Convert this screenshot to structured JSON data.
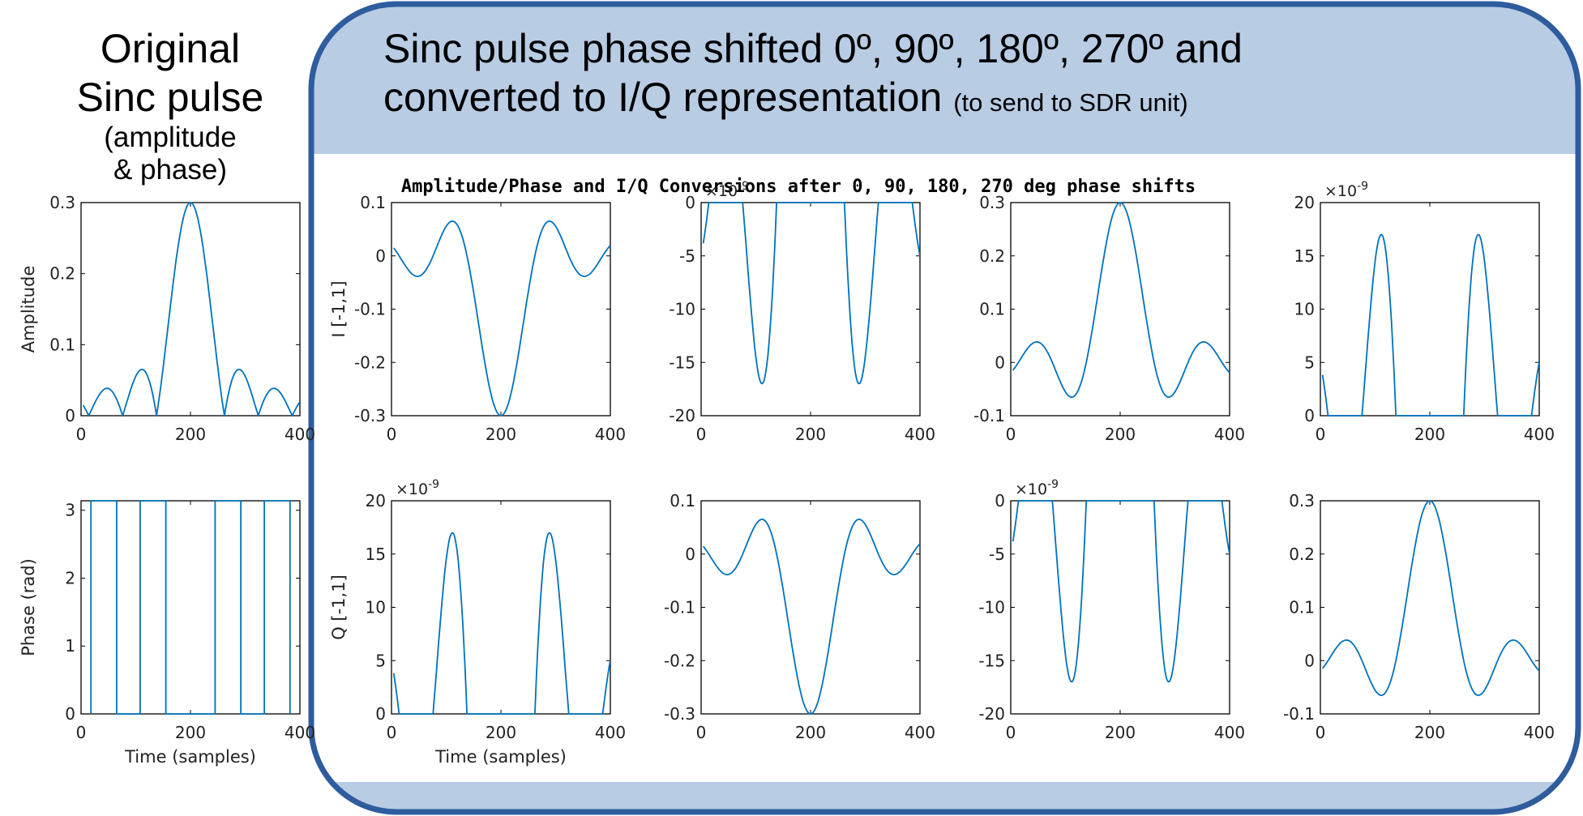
{
  "slide": {
    "left_title": {
      "line1": "Original",
      "line2": "Sinc pulse",
      "line3": "(amplitude",
      "line4": "& phase)"
    },
    "right_title": {
      "line1": "Sinc pulse phase shifted 0º, 90º, 180º, 270º and",
      "line2": "converted to I/Q representation",
      "line2_small": "(to send to SDR unit)"
    },
    "figure_title": "Amplitude/Phase and I/Q Conversions after 0, 90, 180, 270 deg phase shifts",
    "colors": {
      "line": "#0072bd",
      "panel_fill": "#b8cce4",
      "panel_border": "#2e5c9e",
      "axis": "#000000"
    }
  },
  "chart_data": [
    {
      "id": "amp",
      "type": "line",
      "series_shape": "sinc-magnitude",
      "ylabel": "Amplitude",
      "xlabel": "",
      "xlim": [
        0,
        400
      ],
      "ylim": [
        0,
        0.3
      ],
      "xticks": [
        0,
        200,
        400
      ],
      "yticks": [
        0,
        0.1,
        0.2,
        0.3
      ],
      "ytick_labels": [
        "0",
        "0.1",
        "0.2",
        "0.3"
      ],
      "y_exponent": "",
      "peak_x": 200,
      "peak_y": 0.3
    },
    {
      "id": "phase",
      "type": "line",
      "series_shape": "phase-steps",
      "ylabel": "Phase (rad)",
      "xlabel": "Time (samples)",
      "xlim": [
        0,
        400
      ],
      "ylim": [
        0,
        3.14
      ],
      "xticks": [
        0,
        200,
        400
      ],
      "yticks": [
        0,
        1,
        2,
        3
      ],
      "ytick_labels": [
        "0",
        "1",
        "2",
        "3"
      ],
      "y_exponent": "",
      "phase_level": 3.14,
      "phase_transitions": [
        18,
        65,
        108,
        155,
        245,
        292,
        335,
        382
      ]
    },
    {
      "id": "i0",
      "type": "line",
      "series_shape": "sinc-neg",
      "ylabel": "I [-1,1]",
      "xlabel": "",
      "xlim": [
        0,
        400
      ],
      "ylim": [
        -0.3,
        0.1
      ],
      "xticks": [
        0,
        200,
        400
      ],
      "yticks": [
        -0.3,
        -0.2,
        -0.1,
        0,
        0.1
      ],
      "ytick_labels": [
        "-0.3",
        "-0.2",
        "-0.1",
        "0",
        "0.1"
      ],
      "y_exponent": "",
      "peak_x": 200,
      "peak_y": -0.3
    },
    {
      "id": "i90",
      "type": "line",
      "series_shape": "lobes-neg",
      "ylabel": "",
      "xlabel": "",
      "xlim": [
        0,
        400
      ],
      "ylim": [
        -20,
        0
      ],
      "xticks": [
        0,
        200,
        400
      ],
      "yticks": [
        -20,
        -15,
        -10,
        -5,
        0
      ],
      "ytick_labels": [
        "-20",
        "-15",
        "-10",
        "-5",
        "0"
      ],
      "y_exponent": "×10",
      "y_exponent_power": "-9",
      "lobe_peak": -17
    },
    {
      "id": "i180",
      "type": "line",
      "series_shape": "sinc",
      "ylabel": "",
      "xlabel": "",
      "xlim": [
        0,
        400
      ],
      "ylim": [
        -0.1,
        0.3
      ],
      "xticks": [
        0,
        200,
        400
      ],
      "yticks": [
        -0.1,
        0,
        0.1,
        0.2,
        0.3
      ],
      "ytick_labels": [
        "-0.1",
        "0",
        "0.1",
        "0.2",
        "0.3"
      ],
      "y_exponent": "",
      "peak_x": 200,
      "peak_y": 0.3
    },
    {
      "id": "i270",
      "type": "line",
      "series_shape": "lobes-pos",
      "ylabel": "",
      "xlabel": "",
      "xlim": [
        0,
        400
      ],
      "ylim": [
        0,
        20
      ],
      "xticks": [
        0,
        200,
        400
      ],
      "yticks": [
        0,
        5,
        10,
        15,
        20
      ],
      "ytick_labels": [
        "0",
        "5",
        "10",
        "15",
        "20"
      ],
      "y_exponent": "×10",
      "y_exponent_power": "-9",
      "lobe_peak": 17
    },
    {
      "id": "q0",
      "type": "line",
      "series_shape": "lobes-pos",
      "ylabel": "Q [-1,1]",
      "xlabel": "Time (samples)",
      "xlim": [
        0,
        400
      ],
      "ylim": [
        0,
        20
      ],
      "xticks": [
        0,
        200,
        400
      ],
      "yticks": [
        0,
        5,
        10,
        15,
        20
      ],
      "ytick_labels": [
        "0",
        "5",
        "10",
        "15",
        "20"
      ],
      "y_exponent": "×10",
      "y_exponent_power": "-9",
      "lobe_peak": 17
    },
    {
      "id": "q90",
      "type": "line",
      "series_shape": "sinc-neg",
      "ylabel": "",
      "xlabel": "",
      "xlim": [
        0,
        400
      ],
      "ylim": [
        -0.3,
        0.1
      ],
      "xticks": [
        0,
        200,
        400
      ],
      "yticks": [
        -0.3,
        -0.2,
        -0.1,
        0,
        0.1
      ],
      "ytick_labels": [
        "-0.3",
        "-0.2",
        "-0.1",
        "0",
        "0.1"
      ],
      "y_exponent": "",
      "peak_x": 200,
      "peak_y": -0.3
    },
    {
      "id": "q180",
      "type": "line",
      "series_shape": "lobes-neg",
      "ylabel": "",
      "xlabel": "",
      "xlim": [
        0,
        400
      ],
      "ylim": [
        -20,
        0
      ],
      "xticks": [
        0,
        200,
        400
      ],
      "yticks": [
        -20,
        -15,
        -10,
        -5,
        0
      ],
      "ytick_labels": [
        "-20",
        "-15",
        "-10",
        "-5",
        "0"
      ],
      "y_exponent": "×10",
      "y_exponent_power": "-9",
      "lobe_peak": -17
    },
    {
      "id": "q270",
      "type": "line",
      "series_shape": "sinc",
      "ylabel": "",
      "xlabel": "",
      "xlim": [
        0,
        400
      ],
      "ylim": [
        -0.1,
        0.3
      ],
      "xticks": [
        0,
        200,
        400
      ],
      "yticks": [
        -0.1,
        0,
        0.1,
        0.2,
        0.3
      ],
      "ytick_labels": [
        "-0.1",
        "0",
        "0.1",
        "0.2",
        "0.3"
      ],
      "y_exponent": "",
      "peak_x": 200,
      "peak_y": 0.3
    }
  ]
}
